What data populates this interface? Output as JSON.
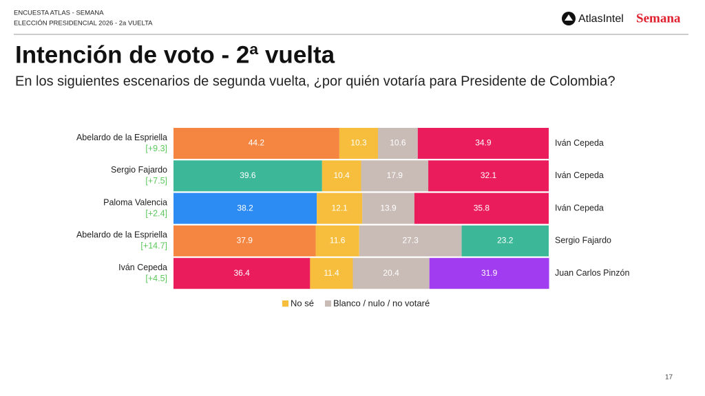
{
  "header": {
    "survey": "ENCUESTA ATLAS - SEMANA",
    "election": "ELECCIÓN PRESIDENCIAL 2026 - 2a VUELTA",
    "logo_atlas": "AtlasIntel",
    "logo_semana": "Semana"
  },
  "page_number": "17",
  "chart_data": {
    "type": "bar",
    "orientation": "horizontal",
    "stacked": true,
    "title": "Intención de voto - 2ª vuelta",
    "subtitle": "En los siguientes escenarios de segunda vuelta, ¿por quién votaría para Presidente de Colombia?",
    "categories": [
      "Abelardo de la Espriella",
      "Sergio Fajardo",
      "Paloma Valencia",
      "Abelardo de la Espriella",
      "Iván Cepeda"
    ],
    "margins": [
      "[+9.3]",
      "[+7.5]",
      "[+2.4]",
      "[+14.7]",
      "[+4.5]"
    ],
    "right_categories": [
      "Iván Cepeda",
      "Iván Cepeda",
      "Iván Cepeda",
      "Sergio Fajardo",
      "Juan Carlos Pinzón"
    ],
    "xlim": [
      0,
      100
    ],
    "series": [
      {
        "colors": [
          "#f58642",
          "#3cb898",
          "#2c8cf4",
          "#f58642",
          "#ea1c5c"
        ],
        "values": [
          44.2,
          39.6,
          38.2,
          37.9,
          36.4
        ]
      },
      {
        "name": "No sé",
        "color": "#f6be3c",
        "values": [
          10.3,
          10.4,
          12.1,
          11.6,
          11.4
        ]
      },
      {
        "name": "Blanco / nulo / no votaré",
        "color": "#c9bcb6",
        "values": [
          10.6,
          17.9,
          13.9,
          27.3,
          20.4
        ]
      },
      {
        "colors": [
          "#ea1c5c",
          "#ea1c5c",
          "#ea1c5c",
          "#3cb898",
          "#a23cf0"
        ],
        "values": [
          34.9,
          32.1,
          35.8,
          23.2,
          31.9
        ]
      }
    ]
  }
}
